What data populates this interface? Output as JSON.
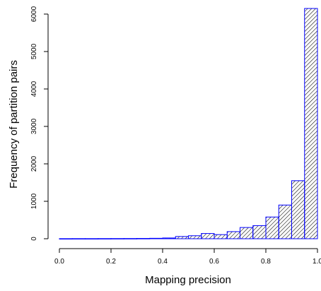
{
  "chart_data": {
    "type": "bar",
    "subtype": "histogram",
    "title": "",
    "xlabel": "Mapping precision",
    "ylabel": "Frequency of partition pairs",
    "bin_width": 0.05,
    "bin_starts": [
      0.0,
      0.05,
      0.1,
      0.15,
      0.2,
      0.25,
      0.3,
      0.35,
      0.4,
      0.45,
      0.5,
      0.55,
      0.6,
      0.65,
      0.7,
      0.75,
      0.8,
      0.85,
      0.9,
      0.95
    ],
    "values": [
      2,
      3,
      3,
      4,
      5,
      6,
      8,
      12,
      20,
      60,
      80,
      140,
      110,
      190,
      300,
      350,
      580,
      900,
      1550,
      6150
    ],
    "xlim": [
      0,
      1
    ],
    "ylim": [
      0,
      6150
    ],
    "x_ticks": [
      0.0,
      0.2,
      0.4,
      0.6,
      0.8,
      1.0
    ],
    "x_tick_labels": [
      "0.0",
      "0.2",
      "0.4",
      "0.6",
      "0.8",
      "1.0"
    ],
    "y_ticks": [
      0,
      1000,
      2000,
      3000,
      4000,
      5000,
      6000
    ],
    "y_tick_labels": [
      "0",
      "1000",
      "2000",
      "3000",
      "4000",
      "5000",
      "6000"
    ],
    "bar_fill": "hatched",
    "bar_border_color": "#0000ff",
    "hatch_color": "#000000",
    "grid": false,
    "legend": "none"
  }
}
